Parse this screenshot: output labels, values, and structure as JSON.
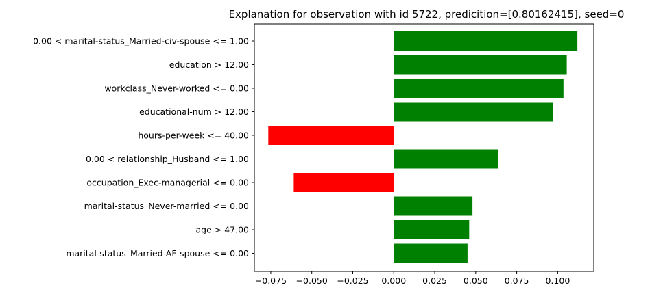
{
  "chart_data": {
    "type": "bar",
    "orientation": "horizontal",
    "title": "Explanation for observation with id 5722, predicition=[0.80162415], seed=0",
    "xlabel": "",
    "ylabel": "",
    "xlim": [
      -0.085,
      0.122
    ],
    "grid": false,
    "legend": "none",
    "x_ticks": [
      -0.075,
      -0.05,
      -0.025,
      0.0,
      0.025,
      0.05,
      0.075,
      0.1
    ],
    "x_tick_labels": [
      "−0.075",
      "−0.050",
      "−0.025",
      "0.000",
      "0.025",
      "0.050",
      "0.075",
      "0.100"
    ],
    "categories": [
      "0.00 < marital-status_Married-civ-spouse <= 1.00",
      "education > 12.00",
      "workclass_Never-worked <= 0.00",
      "educational-num > 12.00",
      "hours-per-week <= 40.00",
      "0.00 < relationship_Husband <= 1.00",
      "occupation_Exec-managerial <= 0.00",
      "marital-status_Never-married <= 0.00",
      "age > 47.00",
      "marital-status_Married-AF-spouse <= 0.00"
    ],
    "values": [
      0.112,
      0.1055,
      0.1035,
      0.097,
      -0.0765,
      0.0635,
      -0.061,
      0.048,
      0.046,
      0.045
    ],
    "colors": {
      "positive": "#008000",
      "negative": "#ff0000",
      "axis": "#000000"
    }
  }
}
